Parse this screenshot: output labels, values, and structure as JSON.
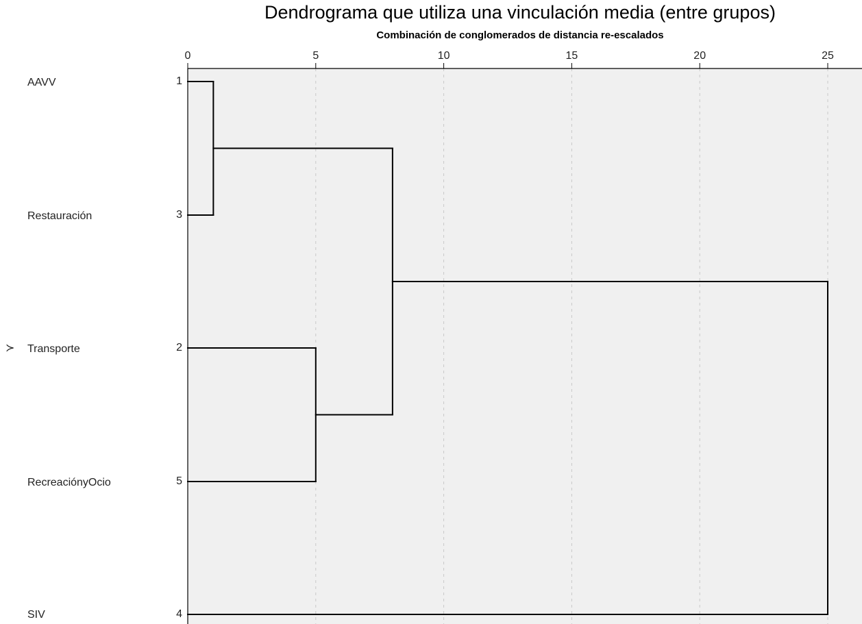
{
  "chart_data": {
    "type": "dendrogram",
    "title": "Dendrograma que utiliza una vinculación media (entre grupos)",
    "xlabel": "Combinación de conglomerados de distancia re-escalados",
    "xlim": [
      0,
      25
    ],
    "xticks": [
      "0",
      "5",
      "10",
      "15",
      "20",
      "25"
    ],
    "xtick_values": [
      0,
      5,
      10,
      15,
      20,
      25
    ],
    "grid": true,
    "leaves": [
      {
        "label": "AAVV",
        "case": "1"
      },
      {
        "label": "Restauración",
        "case": "3"
      },
      {
        "label": "Transporte",
        "case": "2"
      },
      {
        "label": "RecreaciónyOcio",
        "case": "5"
      },
      {
        "label": "SIV",
        "case": "4"
      }
    ],
    "merges": [
      {
        "left": "1",
        "right": "3",
        "distance": 1
      },
      {
        "left": "2",
        "right": "5",
        "distance": 5
      },
      {
        "left": "1+3",
        "right": "2+5",
        "distance": 8
      },
      {
        "left": "1+3+2+5",
        "right": "4",
        "distance": 25
      }
    ],
    "marker_symbol": "≻",
    "colors": {
      "plot_bg": "#f0f0f0",
      "line": "#000000",
      "grid": "#c8c8c8"
    }
  }
}
